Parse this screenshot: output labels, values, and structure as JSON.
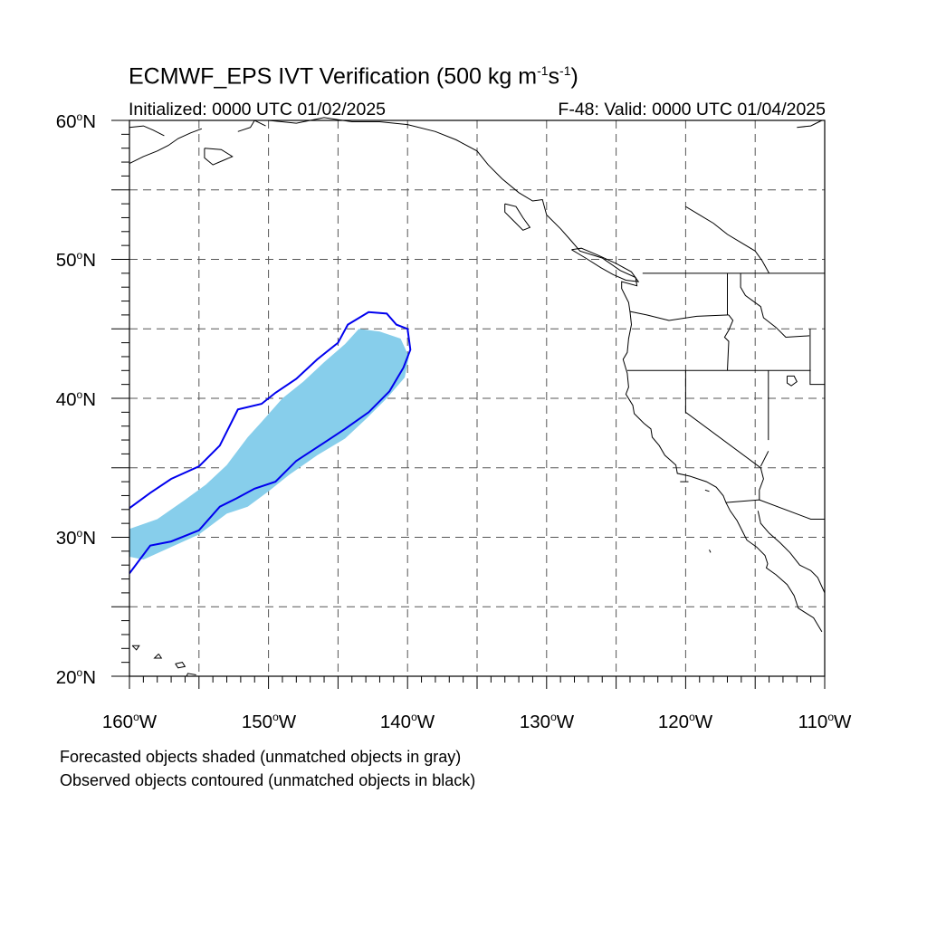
{
  "title": {
    "main": "ECMWF_EPS IVT Verification (500 kg m",
    "exp1": "-1",
    "mid": "s",
    "exp2": "-1",
    "end": ")"
  },
  "subtitle": {
    "left": "Initialized: 0000 UTC 01/02/2025",
    "right": "F-48: Valid: 0000 UTC 01/04/2025"
  },
  "axes": {
    "lat": [
      {
        "num": "60",
        "hem": "N",
        "value": 60
      },
      {
        "num": "50",
        "hem": "N",
        "value": 50
      },
      {
        "num": "40",
        "hem": "N",
        "value": 40
      },
      {
        "num": "30",
        "hem": "N",
        "value": 30
      },
      {
        "num": "20",
        "hem": "N",
        "value": 20
      }
    ],
    "lon": [
      {
        "num": "160",
        "hem": "W",
        "value": -160
      },
      {
        "num": "150",
        "hem": "W",
        "value": -150
      },
      {
        "num": "140",
        "hem": "W",
        "value": -140
      },
      {
        "num": "130",
        "hem": "W",
        "value": -130
      },
      {
        "num": "120",
        "hem": "W",
        "value": -120
      },
      {
        "num": "110",
        "hem": "W",
        "value": -110
      }
    ],
    "lon_range": [
      -160,
      -110
    ],
    "lat_range": [
      20,
      60
    ],
    "grid_interval_deg": 5,
    "grid_style": "dashed"
  },
  "notes": {
    "line1": "Forecasted objects shaded (unmatched objects in gray)",
    "line2": "Observed objects contoured (unmatched objects in black)"
  },
  "colors": {
    "forecast_fill": "#87CEEB",
    "observed_contour": "#0000EE",
    "coastline": "#000000",
    "grid": "#555555"
  },
  "objects": {
    "forecast": {
      "label": "Forecasted object (shaded)",
      "polygon": [
        [
          -160,
          30.6
        ],
        [
          -158,
          31.3
        ],
        [
          -156,
          32.7
        ],
        [
          -154.5,
          33.8
        ],
        [
          -153,
          35.2
        ],
        [
          -151.5,
          37.2
        ],
        [
          -150.5,
          38.3
        ],
        [
          -149,
          40.0
        ],
        [
          -147.5,
          41.2
        ],
        [
          -146,
          42.6
        ],
        [
          -144.5,
          43.9
        ],
        [
          -143.5,
          45.0
        ],
        [
          -142,
          44.8
        ],
        [
          -140.5,
          44.3
        ],
        [
          -139.9,
          43.0
        ],
        [
          -140.2,
          41.5
        ],
        [
          -141.5,
          40.0
        ],
        [
          -143,
          38.5
        ],
        [
          -144.5,
          37.1
        ],
        [
          -146.5,
          35.9
        ],
        [
          -148.5,
          34.5
        ],
        [
          -150,
          33.3
        ],
        [
          -151.5,
          32.2
        ],
        [
          -153,
          31.7
        ],
        [
          -155,
          30.2
        ],
        [
          -157,
          29.3
        ],
        [
          -159,
          28.4
        ],
        [
          -160,
          28.6
        ]
      ]
    },
    "observed": {
      "label": "Observed object (contoured)",
      "polygon": [
        [
          -160,
          32.1
        ],
        [
          -158.5,
          33.2
        ],
        [
          -157,
          34.2
        ],
        [
          -155,
          35.1
        ],
        [
          -153.5,
          36.6
        ],
        [
          -152.2,
          39.2
        ],
        [
          -150.5,
          39.6
        ],
        [
          -149.5,
          40.4
        ],
        [
          -148,
          41.4
        ],
        [
          -146.5,
          42.8
        ],
        [
          -145,
          44.0
        ],
        [
          -144.3,
          45.3
        ],
        [
          -142.8,
          46.2
        ],
        [
          -141.5,
          46.1
        ],
        [
          -140.8,
          45.3
        ],
        [
          -140.0,
          45.0
        ],
        [
          -139.8,
          43.5
        ],
        [
          -140.3,
          42.2
        ],
        [
          -141.3,
          40.5
        ],
        [
          -142.8,
          39.0
        ],
        [
          -144.5,
          37.8
        ],
        [
          -146.0,
          36.8
        ],
        [
          -148.0,
          35.5
        ],
        [
          -149.5,
          34.0
        ],
        [
          -151.0,
          33.5
        ],
        [
          -152.3,
          32.8
        ],
        [
          -153.5,
          32.2
        ],
        [
          -155.0,
          30.5
        ],
        [
          -157,
          29.7
        ],
        [
          -158.5,
          29.4
        ],
        [
          -160,
          27.4
        ]
      ]
    }
  }
}
